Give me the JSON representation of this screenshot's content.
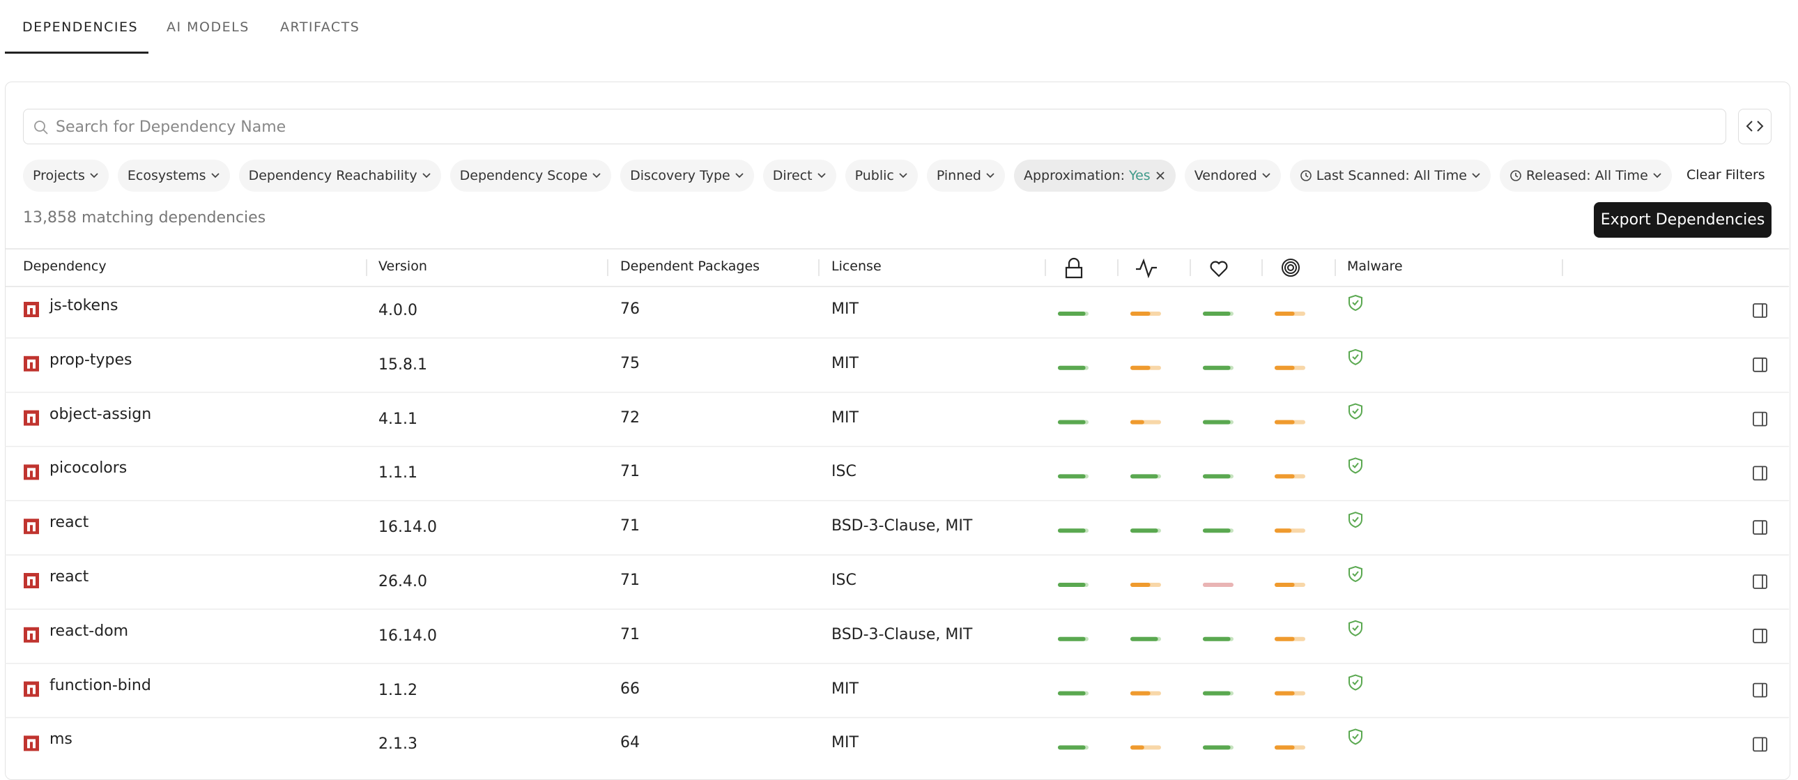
{
  "tabs": [
    "DEPENDENCIES",
    "AI MODELS",
    "ARTIFACTS"
  ],
  "search": {
    "placeholder": "Search for Dependency Name"
  },
  "filters": [
    {
      "label": "Projects"
    },
    {
      "label": "Ecosystems"
    },
    {
      "label": "Dependency Reachability"
    },
    {
      "label": "Dependency Scope"
    },
    {
      "label": "Discovery Type"
    },
    {
      "label": "Direct"
    },
    {
      "label": "Public"
    },
    {
      "label": "Pinned"
    },
    {
      "label": "Approximation:",
      "value": "Yes"
    },
    {
      "label": "Vendored"
    },
    {
      "label": "Last Scanned: All Time"
    },
    {
      "label": "Released: All Time"
    }
  ],
  "clear_filters": "Clear Filters",
  "count_text": "13,858 matching dependencies",
  "export_button": "Export Dependencies",
  "table": {
    "headers": [
      "Dependency",
      "Version",
      "Dependent Packages",
      "License",
      "Malware"
    ],
    "rows": [
      {
        "name": "js-tokens",
        "version": "4.0.0",
        "dependents": "76",
        "license": "MIT",
        "scores": [
          90,
          65,
          90,
          65
        ]
      },
      {
        "name": "prop-types",
        "version": "15.8.1",
        "dependents": "75",
        "license": "MIT",
        "scores": [
          90,
          65,
          90,
          65
        ]
      },
      {
        "name": "object-assign",
        "version": "4.1.1",
        "dependents": "72",
        "license": "MIT",
        "scores": [
          90,
          45,
          90,
          65
        ]
      },
      {
        "name": "picocolors",
        "version": "1.1.1",
        "dependents": "71",
        "license": "ISC",
        "scores": [
          90,
          90,
          90,
          65
        ]
      },
      {
        "name": "react",
        "version": "16.14.0",
        "dependents": "71",
        "license": "BSD-3-Clause, MIT",
        "scores": [
          90,
          90,
          90,
          55
        ]
      },
      {
        "name": "react",
        "version": "26.4.0",
        "dependents": "71",
        "license": "ISC",
        "scores": [
          90,
          65,
          15,
          65
        ]
      },
      {
        "name": "react-dom",
        "version": "16.14.0",
        "dependents": "71",
        "license": "BSD-3-Clause, MIT",
        "scores": [
          90,
          90,
          90,
          65
        ]
      },
      {
        "name": "function-bind",
        "version": "1.1.2",
        "dependents": "66",
        "license": "MIT",
        "scores": [
          90,
          65,
          90,
          65
        ]
      },
      {
        "name": "ms",
        "version": "2.1.3",
        "dependents": "64",
        "license": "MIT",
        "scores": [
          90,
          45,
          90,
          65
        ]
      }
    ]
  }
}
